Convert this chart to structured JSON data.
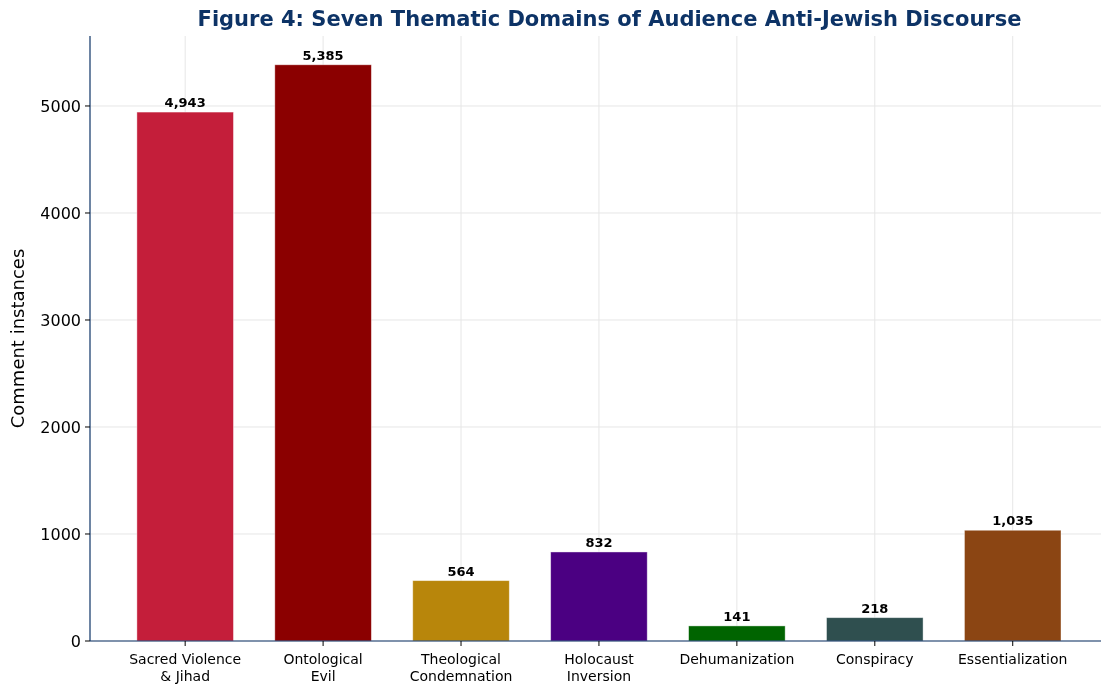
{
  "chart_data": {
    "type": "bar",
    "title": "Figure 4: Seven Thematic Domains of Audience Anti-Jewish Discourse",
    "ylabel": "Comment instances",
    "categories": [
      "Sacred Violence\n& Jihad",
      "Ontological\nEvil",
      "Theological\nCondemnation",
      "Holocaust\nInversion",
      "Dehumanization",
      "Conspiracy",
      "Essentialization"
    ],
    "values": [
      4943,
      5385,
      564,
      832,
      141,
      218,
      1035
    ],
    "colors": [
      "#c41e3a",
      "#8b0000",
      "#b8860b",
      "#4b0082",
      "#006400",
      "#2f4f4f",
      "#8b4513"
    ],
    "value_labels": [
      "4,943",
      "5,385",
      "564",
      "832",
      "141",
      "218",
      "1,035"
    ],
    "ylim": [
      0,
      5654
    ],
    "yticks": [
      0,
      1000,
      2000,
      3000,
      4000,
      5000
    ],
    "grid": true
  }
}
